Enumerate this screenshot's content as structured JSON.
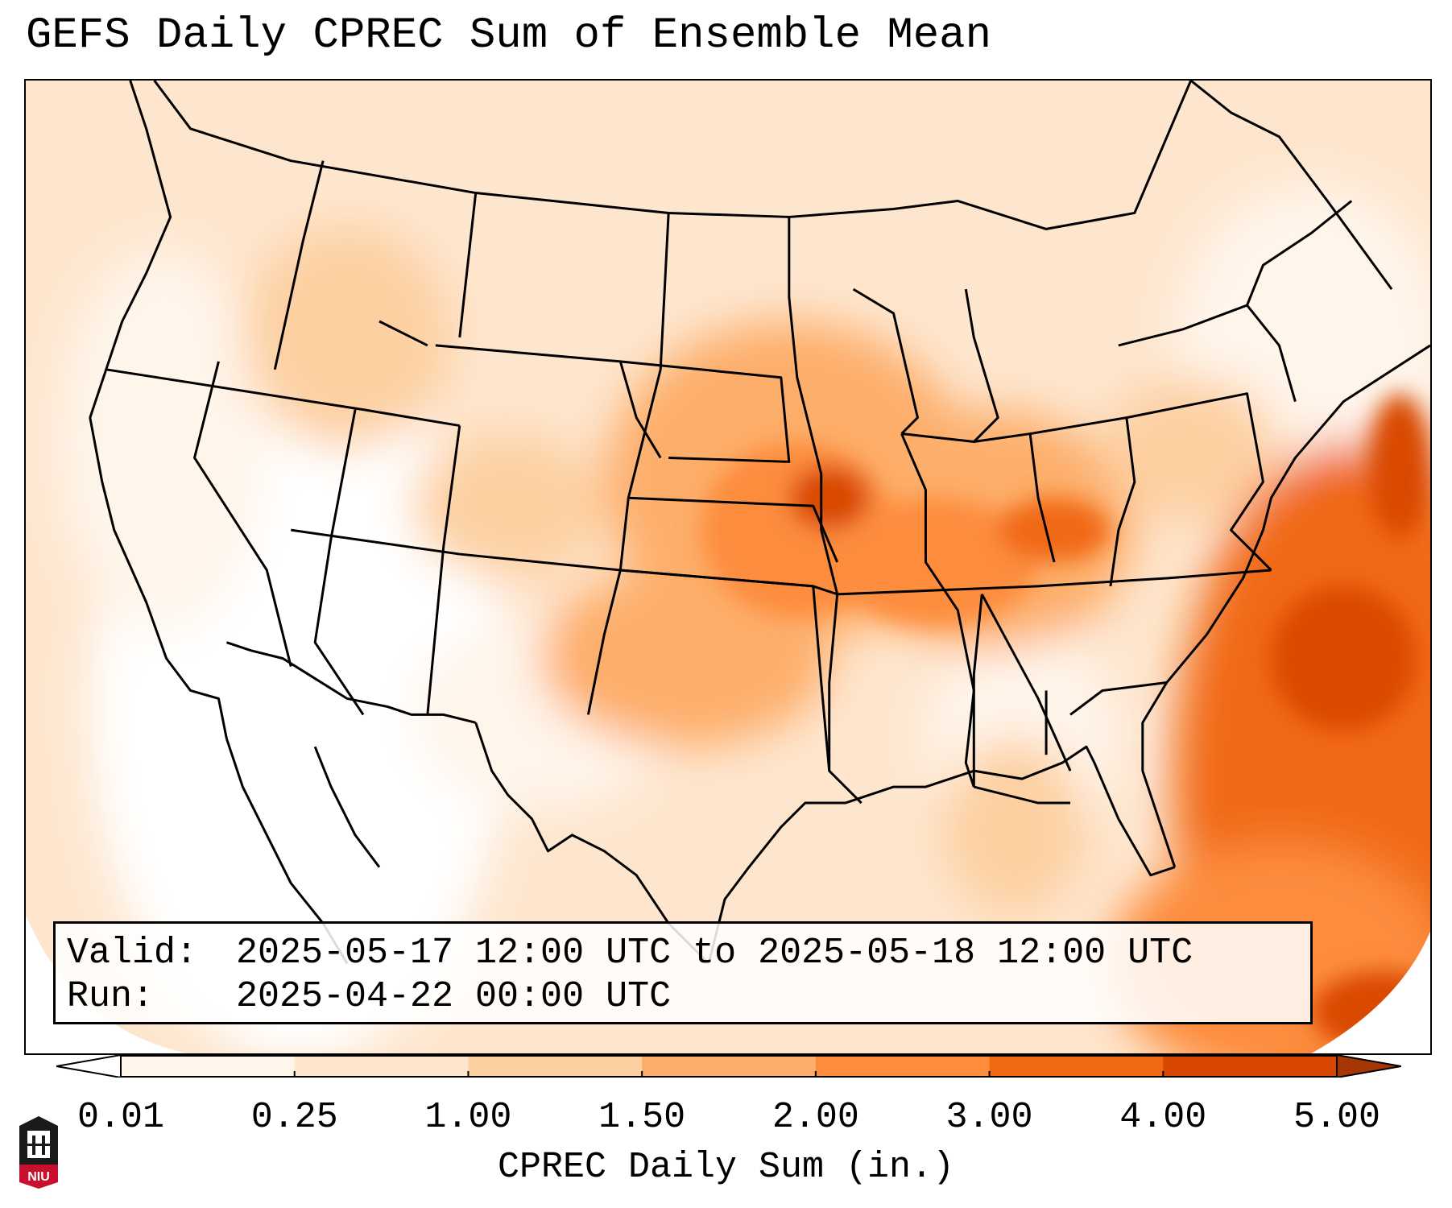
{
  "title": "GEFS Daily CPREC Sum of Ensemble Mean",
  "info": {
    "valid_label": "Valid:",
    "valid_value": "2025-05-17 12:00 UTC to 2025-05-18 12:00 UTC",
    "run_label": "Run:",
    "run_value": "2025-04-22 00:00 UTC"
  },
  "colorbar": {
    "label": "CPREC Daily Sum (in.)",
    "ticks": [
      "0.01",
      "0.25",
      "1.00",
      "1.50",
      "2.00",
      "3.00",
      "4.00",
      "5.00"
    ],
    "colors": [
      "#fff5eb",
      "#fee6ce",
      "#fdd0a2",
      "#fdae6b",
      "#fd8d3c",
      "#f16913",
      "#d94801",
      "#a63603"
    ],
    "under_color": "#ffffff",
    "over_color": "#7f2704"
  },
  "logo": {
    "text": "NIU"
  },
  "map": {
    "region": "Contiguous United States",
    "icon": "niu-logo-icon"
  }
}
